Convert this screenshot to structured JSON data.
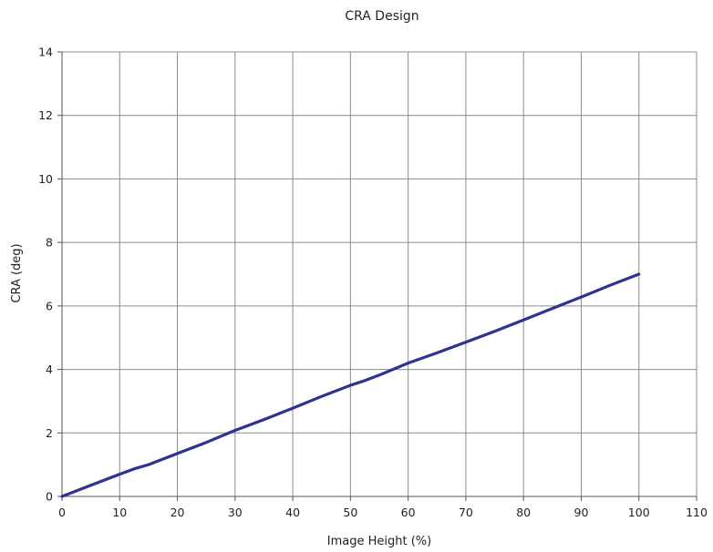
{
  "chart_data": {
    "type": "line",
    "title": "CRA  Design",
    "xlabel": "Image Height (%)",
    "ylabel": "CRA (deg)",
    "xlim": [
      0,
      110
    ],
    "ylim": [
      0,
      14
    ],
    "xticks": [
      0,
      10,
      20,
      30,
      40,
      50,
      60,
      70,
      80,
      90,
      100,
      110
    ],
    "yticks": [
      0,
      2,
      4,
      6,
      8,
      10,
      12,
      14
    ],
    "grid": true,
    "legend": "none",
    "series": [
      {
        "color": "#2e3390",
        "x": [
          0,
          5,
          10,
          12.5,
          15,
          20,
          25,
          30,
          32.5,
          35,
          40,
          45,
          50,
          52.5,
          55,
          60,
          65,
          70,
          75,
          80,
          85,
          90,
          95,
          100
        ],
        "y": [
          0,
          0.35,
          0.7,
          0.87,
          1.0,
          1.35,
          1.7,
          2.08,
          2.25,
          2.42,
          2.78,
          3.15,
          3.5,
          3.65,
          3.82,
          4.2,
          4.52,
          4.86,
          5.2,
          5.56,
          5.92,
          6.28,
          6.65,
          7.0
        ]
      }
    ]
  }
}
